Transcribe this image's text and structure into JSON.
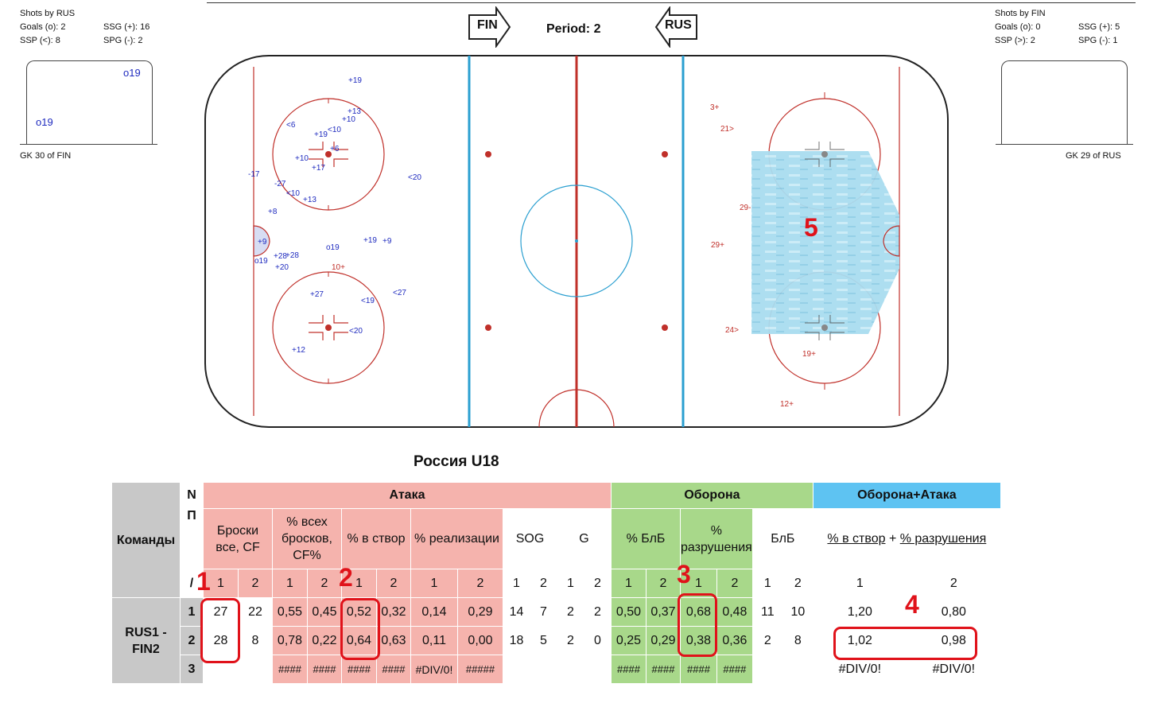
{
  "left_info": {
    "title": "Shots by RUS",
    "goals": "Goals (o): 2",
    "ssg": "SSG (+): 16",
    "ssp": "SSP (<): 8",
    "spg": "SPG (-): 2",
    "goal_marks": [
      "o19",
      "o19"
    ],
    "gk": "GK   30 of FIN"
  },
  "right_info": {
    "title": "Shots by FIN",
    "goals": "Goals (o): 0",
    "ssg": "SSG (+): 5",
    "ssp": "SSP (>): 2",
    "spg": "SPG (-): 1",
    "gk": "GK   29 of RUS"
  },
  "header": {
    "arrow_left": "FIN",
    "arrow_right": "RUS",
    "period": "Period: 2"
  },
  "rink": {
    "rus_shots": [
      "+19",
      "+13",
      "+10",
      "<6",
      "+19",
      "<10",
      "+6",
      "+10",
      "+17",
      "-17",
      "-27",
      "<10",
      "+13",
      "<20",
      "+8",
      "+9",
      "o19",
      "+28",
      "+28",
      "+20",
      "o19",
      "+19",
      "+9",
      "10+",
      "+27",
      "<19",
      "<27",
      "<20",
      "+12"
    ],
    "fin_shots": [
      "3+",
      "21>",
      "29-",
      "29+",
      "24>",
      "19+",
      "12+"
    ],
    "zone_number": "5"
  },
  "team_title": "Россия U18",
  "table": {
    "team_header": "Команды",
    "n_header": "N",
    "p_header": "П",
    "slash": "/",
    "attack": "Атака",
    "defense": "Оборона",
    "def_att": "Оборона+Атака",
    "col_cf": "Броски все, CF",
    "col_cfp": "% всех бросков, CF%",
    "col_sog_pct": "% в створ",
    "col_real": "% реализации",
    "col_sog": "SOG",
    "col_g": "G",
    "col_blb_pct": "% БлБ",
    "col_destr": "% разрушения",
    "col_blb": "БлБ",
    "col_combo_a": "% в створ",
    "col_combo_plus": "+",
    "col_combo_b": "% разрушения",
    "sub": [
      "1",
      "2"
    ],
    "team_name": "RUS1 - FIN2",
    "rows": [
      {
        "n": "1",
        "cells": [
          "27",
          "22",
          "0,55",
          "0,45",
          "0,52",
          "0,32",
          "0,14",
          "0,29",
          "14",
          "7",
          "2",
          "2",
          "0,50",
          "0,37",
          "0,68",
          "0,48",
          "11",
          "10",
          "1,20",
          "0,80"
        ]
      },
      {
        "n": "2",
        "cells": [
          "28",
          "8",
          "0,78",
          "0,22",
          "0,64",
          "0,63",
          "0,11",
          "0,00",
          "18",
          "5",
          "2",
          "0",
          "0,25",
          "0,29",
          "0,38",
          "0,36",
          "2",
          "8",
          "1,02",
          "0,98"
        ]
      },
      {
        "n": "3",
        "cells": [
          "",
          "",
          "####",
          "####",
          "####",
          "####",
          "#DIV/0!",
          "#####",
          "",
          "",
          "",
          "",
          "####",
          "####",
          "####",
          "####",
          "",
          "",
          "#DIV/0!",
          "#DIV/0!"
        ]
      }
    ]
  },
  "annotations": [
    "1",
    "2",
    "3",
    "4"
  ],
  "colors": {
    "rink_red": "#c0302a",
    "rink_blue": "#2a9fd0",
    "shot_blue": "#1f2bbf",
    "highlight_red": "#e0121a"
  }
}
